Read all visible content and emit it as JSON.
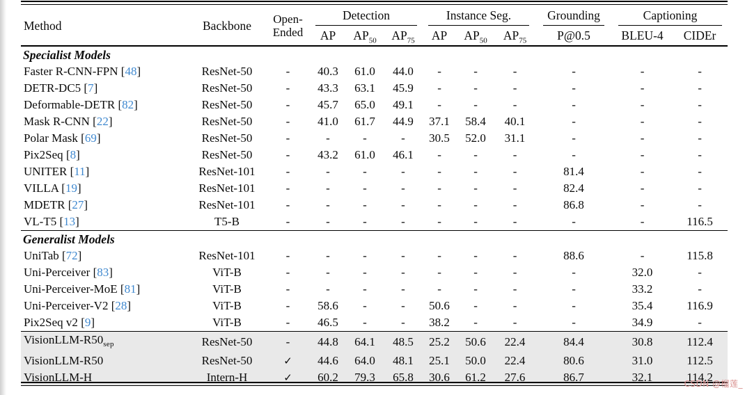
{
  "page": {
    "watermark": {
      "text": "CSDN @榴莲_",
      "color": "#d9908f"
    }
  },
  "table": {
    "colors": {
      "citation": "#3f88cf",
      "highlight": "#e9e9e9",
      "rule": "#000000"
    },
    "citation_brackets": [
      " [",
      "]"
    ],
    "check_glyph": "✓",
    "header": {
      "method": "Method",
      "backbone": "Backbone",
      "open_ended_line1": "Open-",
      "open_ended_line2": "Ended",
      "groups": [
        {
          "label": "Detection",
          "span": 3
        },
        {
          "label": "Instance Seg.",
          "span": 3
        },
        {
          "label": "Grounding",
          "span": 1
        },
        {
          "label": "Captioning",
          "span": 2
        }
      ],
      "subheaders": [
        {
          "base": "AP",
          "sub": ""
        },
        {
          "base": "AP",
          "sub": "50"
        },
        {
          "base": "AP",
          "sub": "75"
        },
        {
          "base": "AP",
          "sub": ""
        },
        {
          "base": "AP",
          "sub": "50"
        },
        {
          "base": "AP",
          "sub": "75"
        },
        {
          "base": "P@0.5",
          "sub": ""
        },
        {
          "base": "BLEU-4",
          "sub": ""
        },
        {
          "base": "CIDEr",
          "sub": ""
        }
      ]
    },
    "sections": [
      {
        "title": "Specialist Models",
        "highlight": false,
        "rows": [
          {
            "method": "Faster R-CNN-FPN",
            "cite": "48",
            "backbone": "ResNet-50",
            "open_ended": "-",
            "values": [
              "40.3",
              "61.0",
              "44.0",
              "-",
              "-",
              "-",
              "-",
              "-",
              "-"
            ]
          },
          {
            "method": "DETR-DC5",
            "cite": "7",
            "backbone": "ResNet-50",
            "open_ended": "-",
            "values": [
              "43.3",
              "63.1",
              "45.9",
              "-",
              "-",
              "-",
              "-",
              "-",
              "-"
            ]
          },
          {
            "method": "Deformable-DETR",
            "cite": "82",
            "backbone": "ResNet-50",
            "open_ended": "-",
            "values": [
              "45.7",
              "65.0",
              "49.1",
              "-",
              "-",
              "-",
              "-",
              "-",
              "-"
            ]
          },
          {
            "method": "Mask R-CNN",
            "cite": "22",
            "backbone": "ResNet-50",
            "open_ended": "-",
            "values": [
              "41.0",
              "61.7",
              "44.9",
              "37.1",
              "58.4",
              "40.1",
              "-",
              "-",
              "-"
            ]
          },
          {
            "method": "Polar Mask",
            "cite": "69",
            "backbone": "ResNet-50",
            "open_ended": "-",
            "values": [
              "-",
              "-",
              "-",
              "30.5",
              "52.0",
              "31.1",
              "-",
              "-",
              "-"
            ]
          },
          {
            "method": "Pix2Seq",
            "cite": "8",
            "backbone": "ResNet-50",
            "open_ended": "-",
            "values": [
              "43.2",
              "61.0",
              "46.1",
              "-",
              "-",
              "-",
              "-",
              "-",
              "-"
            ]
          },
          {
            "method": "UNITER",
            "cite": "11",
            "backbone": "ResNet-101",
            "open_ended": "-",
            "values": [
              "-",
              "-",
              "-",
              "-",
              "-",
              "-",
              "81.4",
              "-",
              "-"
            ]
          },
          {
            "method": "VILLA",
            "cite": "19",
            "backbone": "ResNet-101",
            "open_ended": "-",
            "values": [
              "-",
              "-",
              "-",
              "-",
              "-",
              "-",
              "82.4",
              "-",
              "-"
            ]
          },
          {
            "method": "MDETR",
            "cite": "27",
            "backbone": "ResNet-101",
            "open_ended": "-",
            "values": [
              "-",
              "-",
              "-",
              "-",
              "-",
              "-",
              "86.8",
              "-",
              "-"
            ]
          },
          {
            "method": "VL-T5",
            "cite": "13",
            "backbone": "T5-B",
            "open_ended": "-",
            "values": [
              "-",
              "-",
              "-",
              "-",
              "-",
              "-",
              "-",
              "-",
              "116.5"
            ]
          }
        ]
      },
      {
        "title": "Generalist Models",
        "highlight": false,
        "rows": [
          {
            "method": "UniTab",
            "cite": "72",
            "backbone": "ResNet-101",
            "open_ended": "-",
            "values": [
              "-",
              "-",
              "-",
              "-",
              "-",
              "-",
              "88.6",
              "-",
              "115.8"
            ]
          },
          {
            "method": "Uni-Perceiver",
            "cite": "83",
            "backbone": "ViT-B",
            "open_ended": "-",
            "values": [
              "-",
              "-",
              "-",
              "-",
              "-",
              "-",
              "-",
              "32.0",
              "-"
            ]
          },
          {
            "method": "Uni-Perceiver-MoE",
            "cite": "81",
            "backbone": "ViT-B",
            "open_ended": "-",
            "values": [
              "-",
              "-",
              "-",
              "-",
              "-",
              "-",
              "-",
              "33.2",
              "-"
            ]
          },
          {
            "method": "Uni-Perceiver-V2",
            "cite": "28",
            "backbone": "ViT-B",
            "open_ended": "-",
            "values": [
              "58.6",
              "-",
              "-",
              "50.6",
              "-",
              "-",
              "-",
              "35.4",
              "116.9"
            ]
          },
          {
            "method": "Pix2Seq v2",
            "cite": "9",
            "backbone": "ViT-B",
            "open_ended": "-",
            "values": [
              "46.5",
              "-",
              "-",
              "38.2",
              "-",
              "-",
              "-",
              "34.9",
              "-"
            ]
          }
        ]
      },
      {
        "title": null,
        "highlight": true,
        "rows": [
          {
            "method": "VisionLLM-R50",
            "method_sub": "sep",
            "backbone": "ResNet-50",
            "open_ended": "-",
            "values": [
              "44.8",
              "64.1",
              "48.5",
              "25.2",
              "50.6",
              "22.4",
              "84.4",
              "30.8",
              "112.4"
            ]
          },
          {
            "method": "VisionLLM-R50",
            "backbone": "ResNet-50",
            "open_ended": "✓",
            "values": [
              "44.6",
              "64.0",
              "48.1",
              "25.1",
              "50.0",
              "22.4",
              "80.6",
              "31.0",
              "112.5"
            ]
          },
          {
            "method": "VisionLLM-H",
            "backbone": "Intern-H",
            "open_ended": "✓",
            "values": [
              "60.2",
              "79.3",
              "65.8",
              "30.6",
              "61.2",
              "27.6",
              "86.7",
              "32.1",
              "114.2"
            ]
          }
        ]
      }
    ]
  }
}
